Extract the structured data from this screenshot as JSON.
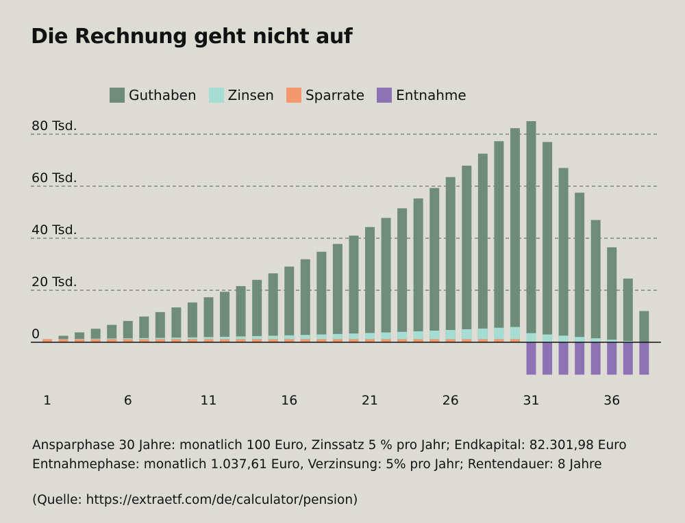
{
  "title": "Die Rechnung geht nicht auf",
  "legend": [
    {
      "label": "Guthaben",
      "color": "#6f8c7b"
    },
    {
      "label": "Zinsen",
      "color": "#a6ddd2"
    },
    {
      "label": "Sparrate",
      "color": "#f2976e"
    },
    {
      "label": "Entnahme",
      "color": "#8e72b6"
    }
  ],
  "notes": {
    "line1": "Ansparphase 30 Jahre: monatlich 100 Euro, Zinssatz 5 % pro Jahr; Endkapital: 82.301,98 Euro",
    "line2": "Entnahmephase: monatlich 1.037,61 Euro, Verzinsung: 5% pro Jahr; Rentendauer: 8 Jahre",
    "source": "(Quelle: https://extraetf.com/de/calculator/pension)"
  },
  "chart_data": {
    "type": "bar",
    "stacked": true,
    "title": "Die Rechnung geht nicht auf",
    "categories": [
      1,
      2,
      3,
      4,
      5,
      6,
      7,
      8,
      9,
      10,
      11,
      12,
      13,
      14,
      15,
      16,
      17,
      18,
      19,
      20,
      21,
      22,
      23,
      24,
      25,
      26,
      27,
      28,
      29,
      30,
      31,
      32,
      33,
      34,
      35,
      36,
      37,
      38
    ],
    "x_tick_labels": [
      "1",
      "6",
      "11",
      "16",
      "21",
      "26",
      "31",
      "36"
    ],
    "x_tick_years": [
      1,
      6,
      11,
      16,
      21,
      26,
      31,
      36
    ],
    "y_tick_labels": [
      {
        "value": 0,
        "label": "0"
      },
      {
        "value": 20000,
        "label": "20 Tsd."
      },
      {
        "value": 40000,
        "label": "40 Tsd."
      },
      {
        "value": 60000,
        "label": "60 Tsd."
      },
      {
        "value": 80000,
        "label": "80 Tsd."
      }
    ],
    "ylim": [
      -13000,
      86000
    ],
    "series": [
      {
        "name": "Guthaben",
        "color": "#6f8c7b",
        "values": [
          1200,
          2500,
          3800,
          5200,
          6700,
          8200,
          9900,
          11600,
          13400,
          15300,
          17300,
          19400,
          21600,
          24000,
          26500,
          29100,
          31900,
          34800,
          37800,
          41000,
          44300,
          47800,
          51500,
          55300,
          59300,
          63500,
          67900,
          72500,
          77300,
          82300,
          85000,
          77000,
          67000,
          57500,
          47000,
          36500,
          24500,
          12000
        ]
      },
      {
        "name": "Zinsen",
        "color": "#a6ddd2",
        "values": [
          0,
          60,
          120,
          190,
          260,
          330,
          420,
          500,
          600,
          700,
          810,
          930,
          1060,
          1190,
          1330,
          1480,
          1640,
          1810,
          1990,
          2180,
          2380,
          2580,
          2800,
          3030,
          3280,
          3530,
          3800,
          4080,
          4380,
          4700,
          3500,
          3000,
          2550,
          2050,
          1550,
          1000,
          500,
          100
        ]
      },
      {
        "name": "Sparrate",
        "color": "#f2976e",
        "values": [
          1200,
          1200,
          1200,
          1200,
          1200,
          1200,
          1200,
          1200,
          1200,
          1200,
          1200,
          1200,
          1200,
          1200,
          1200,
          1200,
          1200,
          1200,
          1200,
          1200,
          1200,
          1200,
          1200,
          1200,
          1200,
          1200,
          1200,
          1200,
          1200,
          1200,
          0,
          0,
          0,
          0,
          0,
          0,
          0,
          0
        ]
      },
      {
        "name": "Entnahme",
        "color": "#8e72b6",
        "values": [
          0,
          0,
          0,
          0,
          0,
          0,
          0,
          0,
          0,
          0,
          0,
          0,
          0,
          0,
          0,
          0,
          0,
          0,
          0,
          0,
          0,
          0,
          0,
          0,
          0,
          0,
          0,
          0,
          0,
          0,
          -12451,
          -12451,
          -12451,
          -12451,
          -12451,
          -12451,
          -12451,
          -12451
        ]
      }
    ],
    "grid": "dashed horizontal",
    "legend_position": "top"
  }
}
